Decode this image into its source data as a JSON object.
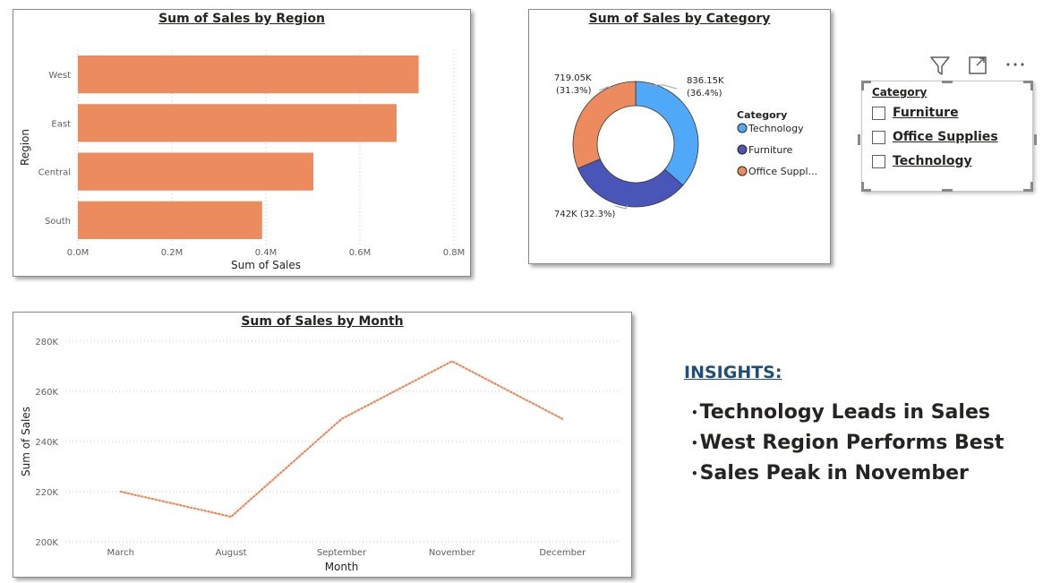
{
  "region_chart": {
    "chart_data": {
      "type": "bar",
      "title": "Sum of Sales by Region",
      "xlabel": "Sum of Sales",
      "ylabel": "Region",
      "categories": [
        "West",
        "East",
        "Central",
        "South"
      ],
      "values": [
        725000,
        678000,
        501000,
        392000
      ],
      "xlim": [
        0,
        800000
      ],
      "x_ticks": [
        "0.0M",
        "0.2M",
        "0.4M",
        "0.6M",
        "0.8M"
      ],
      "x_tick_values": [
        0,
        200000,
        400000,
        600000,
        800000
      ],
      "grid": true,
      "bar_color": "#EC8B5E"
    }
  },
  "category_chart": {
    "chart_data": {
      "type": "pie",
      "title": "Sum of Sales by Category",
      "legend_title": "Category",
      "legend_position": "right",
      "slices": [
        {
          "label": "Technology",
          "legend_label": "Technology",
          "value": 836150,
          "color": "#4FA8F8",
          "data_label": "836.15K",
          "pct_label": "(36.4%)"
        },
        {
          "label": "Furniture",
          "legend_label": "Furniture",
          "value": 742000,
          "color": "#4A55B8",
          "data_label": "742K (32.3%)",
          "pct_label": ""
        },
        {
          "label": "Office Supplies",
          "legend_label": "Office Suppl...",
          "value": 719050,
          "color": "#EC8B5E",
          "data_label": "719.05K",
          "pct_label": "(31.3%)"
        }
      ]
    }
  },
  "month_chart": {
    "chart_data": {
      "type": "line",
      "title": "Sum of Sales by Month",
      "xlabel": "Month",
      "ylabel": "Sum of Sales",
      "categories": [
        "March",
        "August",
        "September",
        "November",
        "December"
      ],
      "series": [
        {
          "values": [
            220000,
            210000,
            249000,
            272000,
            249000
          ],
          "color": "#EC8B5E"
        }
      ],
      "ylim": [
        200000,
        280000
      ],
      "y_ticks": [
        "200K",
        "220K",
        "240K",
        "260K",
        "280K"
      ],
      "y_tick_values": [
        200000,
        220000,
        240000,
        260000,
        280000
      ],
      "grid": true,
      "line_style": "dotted"
    }
  },
  "slicer": {
    "header": "Category",
    "items": [
      "Furniture",
      "Office Supplies",
      "Technology"
    ],
    "toolbar_icons": [
      "filter-icon",
      "focus-mode-icon",
      "more-options-icon"
    ]
  },
  "insights": {
    "heading": "INSIGHTS:",
    "bullet": "•",
    "items": [
      "Technology Leads in Sales",
      "West Region Performs Best",
      "Sales Peak in November"
    ]
  }
}
